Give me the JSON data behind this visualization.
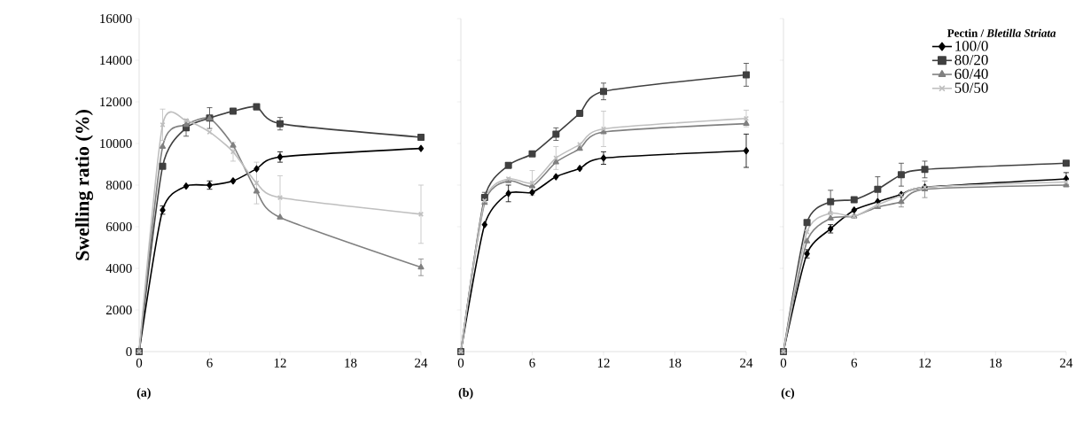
{
  "chart_data": [
    {
      "type": "line",
      "ylabel": "Swelling ratio (%)",
      "annotations": [
        "(a)"
      ],
      "x": [
        0,
        2,
        4,
        6,
        8,
        10,
        12,
        24
      ],
      "xlim": [
        0,
        24
      ],
      "xticks": [
        0,
        6,
        12,
        18,
        24
      ],
      "ylim": [
        0,
        16000
      ],
      "yticks": [
        0,
        2000,
        4000,
        6000,
        8000,
        10000,
        12000,
        14000,
        16000
      ],
      "legend": false,
      "series": [
        {
          "color": "#000000",
          "marker": "diamond",
          "values": [
            0,
            6800,
            7950,
            8000,
            8200,
            8780,
            9350,
            9760
          ],
          "errors": [
            null,
            200,
            null,
            200,
            null,
            null,
            250,
            null
          ]
        },
        {
          "color": "#404040",
          "marker": "square",
          "values": [
            0,
            8900,
            10750,
            11220,
            11550,
            11760,
            10950,
            10300
          ],
          "errors": [
            null,
            null,
            400,
            500,
            null,
            null,
            300,
            null
          ]
        },
        {
          "color": "#808080",
          "marker": "triangle",
          "values": [
            0,
            9850,
            10900,
            11200,
            9900,
            7700,
            6450,
            4050
          ],
          "errors": [
            null,
            null,
            null,
            null,
            null,
            null,
            null,
            400
          ]
        },
        {
          "color": "#bfbfbf",
          "marker": "cross",
          "values": [
            0,
            10900,
            11100,
            10550,
            9600,
            8100,
            7400,
            6600
          ],
          "errors": [
            null,
            750,
            null,
            null,
            450,
            1000,
            1050,
            1400
          ]
        }
      ]
    },
    {
      "type": "line",
      "annotations": [
        "(b)"
      ],
      "x": [
        0,
        2,
        4,
        6,
        8,
        10,
        12,
        24
      ],
      "xlim": [
        0,
        24
      ],
      "xticks": [
        0,
        6,
        12,
        18,
        24
      ],
      "ylim": [
        0,
        16000
      ],
      "yticks": [
        0,
        2000,
        4000,
        6000,
        8000,
        10000,
        12000,
        14000,
        16000
      ],
      "tick_labels": "x",
      "legend": false,
      "series": [
        {
          "color": "#000000",
          "marker": "diamond",
          "values": [
            0,
            6100,
            7600,
            7650,
            8400,
            8800,
            9300,
            9650
          ],
          "errors": [
            null,
            null,
            400,
            null,
            null,
            null,
            300,
            800
          ]
        },
        {
          "color": "#404040",
          "marker": "square",
          "values": [
            0,
            7400,
            8950,
            9500,
            10450,
            11450,
            12500,
            13300
          ],
          "errors": [
            null,
            250,
            null,
            null,
            300,
            null,
            400,
            550
          ]
        },
        {
          "color": "#808080",
          "marker": "triangle",
          "values": [
            0,
            7150,
            8200,
            7950,
            9100,
            9750,
            10550,
            10950
          ]
        },
        {
          "color": "#bfbfbf",
          "marker": "cross",
          "values": [
            0,
            7250,
            8300,
            8100,
            9300,
            9950,
            10700,
            11200
          ],
          "errors": [
            null,
            null,
            null,
            600,
            550,
            null,
            850,
            400
          ]
        }
      ]
    },
    {
      "type": "line",
      "annotations": [
        "(c)"
      ],
      "legend_title": "Pectin / *Bletilla Striata*",
      "x": [
        0,
        2,
        4,
        6,
        8,
        10,
        12,
        24
      ],
      "xlim": [
        0,
        24
      ],
      "xticks": [
        0,
        6,
        12,
        18,
        24
      ],
      "ylim": [
        0,
        16000
      ],
      "yticks": [
        0,
        2000,
        4000,
        6000,
        8000,
        10000,
        12000,
        14000,
        16000
      ],
      "tick_labels": "x",
      "legend": "top right",
      "series": [
        {
          "name": "100/0",
          "color": "#000000",
          "marker": "diamond",
          "values": [
            0,
            4700,
            5900,
            6800,
            7200,
            7550,
            7900,
            8300
          ],
          "errors": [
            null,
            200,
            200,
            null,
            null,
            null,
            null,
            300
          ]
        },
        {
          "name": "80/20",
          "color": "#404040",
          "marker": "square",
          "values": [
            0,
            6200,
            7200,
            7300,
            7800,
            8500,
            8750,
            9050
          ],
          "errors": [
            null,
            null,
            550,
            null,
            600,
            550,
            400,
            null
          ]
        },
        {
          "name": "60/40",
          "color": "#808080",
          "marker": "triangle",
          "values": [
            0,
            5300,
            6400,
            6500,
            6950,
            7200,
            7800,
            8000
          ],
          "errors": [
            null,
            null,
            null,
            null,
            null,
            250,
            400,
            null
          ]
        },
        {
          "name": "50/50",
          "color": "#bfbfbf",
          "marker": "cross",
          "values": [
            0,
            5750,
            6650,
            6500,
            7050,
            7500,
            7900,
            8150
          ]
        }
      ]
    }
  ]
}
